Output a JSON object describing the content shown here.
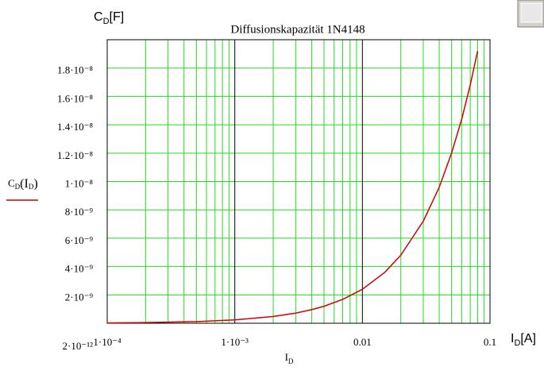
{
  "chart_data": {
    "type": "line",
    "title": "Diffusionskapazität 1N4148",
    "y_label": {
      "main": "C",
      "sub": "D",
      "rest": "[F]"
    },
    "x_label": {
      "main": "I",
      "sub": "D"
    },
    "x_unit_label": {
      "main": "I",
      "sub": "D",
      "rest": "[A]"
    },
    "legend": {
      "main": "C",
      "sub": "D",
      "open": "(I",
      "sub2": "D",
      "close": ")"
    },
    "x": [
      0.0001,
      0.0002,
      0.0005,
      0.001,
      0.002,
      0.003,
      0.004,
      0.005,
      0.007,
      0.01,
      0.015,
      0.02,
      0.03,
      0.04,
      0.05,
      0.06,
      0.07,
      0.08
    ],
    "series": [
      {
        "name": "CD(ID)",
        "color": "#d40000",
        "values": [
          2.6e-11,
          5e-11,
          1.2e-10,
          2.4e-10,
          4.8e-10,
          7.2e-10,
          9.6e-10,
          1.2e-09,
          1.68e-09,
          2.4e-09,
          3.6e-09,
          4.8e-09,
          7.2e-09,
          9.6e-09,
          1.2e-08,
          1.44e-08,
          1.68e-08,
          1.92e-08
        ]
      }
    ],
    "xlim": [
      0.0001,
      0.1
    ],
    "xscale": "log",
    "xticks": [
      {
        "value": 0.0001,
        "label": "1·10⁻⁴"
      },
      {
        "value": 0.001,
        "label": "1·10⁻³"
      },
      0.01,
      0.1
    ],
    "ylim": [
      2e-12,
      2e-08
    ],
    "yticks": [
      {
        "value": 2e-12,
        "label": "2·10⁻¹²"
      },
      {
        "value": 2e-09,
        "label": "2·10⁻⁹"
      },
      {
        "value": 4e-09,
        "label": "4·10⁻⁹"
      },
      {
        "value": 6e-09,
        "label": "6·10⁻⁹"
      },
      {
        "value": 8e-09,
        "label": "8·10⁻⁹"
      },
      {
        "value": 1e-08,
        "label": "1·10⁻⁸"
      },
      {
        "value": 1.2e-08,
        "label": "1.2·10⁻⁸"
      },
      {
        "value": 1.4e-08,
        "label": "1.4·10⁻⁸"
      },
      {
        "value": 1.6e-08,
        "label": "1.6·10⁻⁸"
      },
      {
        "value": 1.8e-08,
        "label": "1.8·10⁻⁸"
      }
    ],
    "grid": true,
    "grid_color": "#22dd22"
  }
}
